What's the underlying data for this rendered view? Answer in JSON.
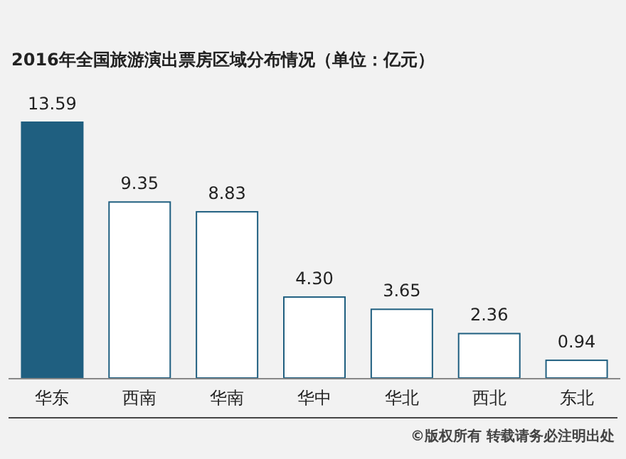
{
  "chart_data": {
    "type": "bar",
    "title": "2016年全国旅游演出票房区域分布情况（单位：亿元）",
    "categories": [
      "华东",
      "西南",
      "华南",
      "华中",
      "华北",
      "西北",
      "东北"
    ],
    "values": [
      13.59,
      9.35,
      8.83,
      4.3,
      3.65,
      2.36,
      0.94
    ],
    "colors": [
      "#1f5f80",
      "#ffffff",
      "#ffffff",
      "#ffffff",
      "#ffffff",
      "#ffffff",
      "#ffffff"
    ],
    "value_labels": [
      "13.59",
      "9.35",
      "8.83",
      "4.30",
      "3.65",
      "2.36",
      "0.94"
    ],
    "annotations": [
      "©版权所有   转载请务必注明出处"
    ]
  }
}
